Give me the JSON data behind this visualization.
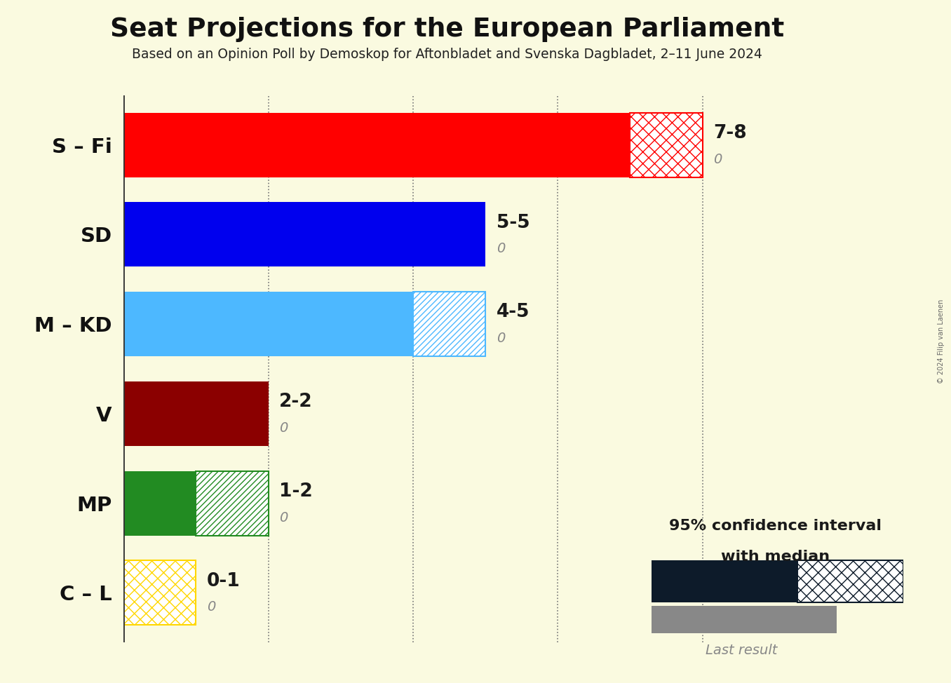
{
  "title": "Seat Projections for the European Parliament",
  "subtitle": "Based on an Opinion Poll by Demoskop for Aftonbladet and Svenska Dagbladet, 2–11 June 2024",
  "copyright": "© 2024 Filip van Laenen",
  "parties": [
    "S – Fi",
    "SD",
    "M – KD",
    "V",
    "MP",
    "C – L"
  ],
  "solid_values": [
    7,
    5,
    4,
    2,
    1,
    0
  ],
  "hatch_values": [
    1,
    0,
    1,
    0,
    1,
    1
  ],
  "last_results": [
    0,
    0,
    0,
    0,
    0,
    0
  ],
  "labels": [
    "7-8",
    "5-5",
    "4-5",
    "2-2",
    "1-2",
    "0-1"
  ],
  "colors": [
    "#FF0000",
    "#0000EE",
    "#4DB8FF",
    "#8B0000",
    "#228B22",
    "#FFD700"
  ],
  "background_color": "#FAFAE0",
  "xlim_max": 9.2,
  "xtick_positions": [
    0,
    2,
    4,
    6,
    8
  ],
  "bar_height": 0.72,
  "legend_solid_color": "#0d1b2a",
  "legend_gray_color": "#888888",
  "legend_text1": "95% confidence interval",
  "legend_text2": "with median",
  "legend_text3": "Last result"
}
